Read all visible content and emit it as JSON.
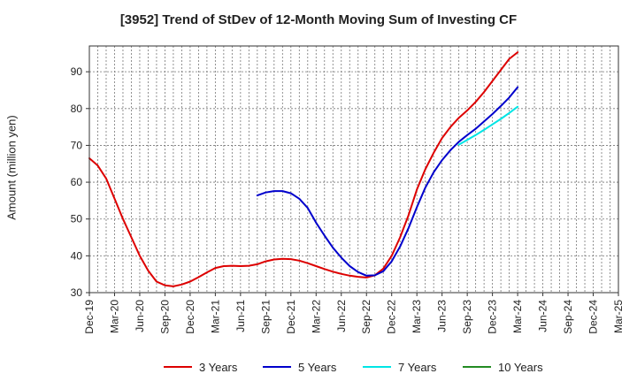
{
  "chart_data": {
    "type": "line",
    "title": "[3952]  Trend of StDev of 12-Month Moving Sum of Investing CF",
    "ylabel": "Amount (million yen)",
    "xlabel": "",
    "ylim": [
      30,
      97
    ],
    "yticks": [
      30,
      40,
      50,
      60,
      70,
      80,
      90
    ],
    "xlim": [
      "Dec-19",
      "Mar-25"
    ],
    "x_tick_labels": [
      "Dec-19",
      "Mar-20",
      "Jun-20",
      "Sep-20",
      "Dec-20",
      "Mar-21",
      "Jun-21",
      "Sep-21",
      "Dec-21",
      "Mar-22",
      "Jun-22",
      "Sep-22",
      "Dec-22",
      "Mar-23",
      "Jun-23",
      "Sep-23",
      "Dec-23",
      "Mar-24",
      "Jun-24",
      "Sep-24",
      "Dec-24",
      "Mar-25"
    ],
    "grid": true,
    "legend": "bottom",
    "series": [
      {
        "name": "3 Years",
        "color": "#dd0000",
        "x": [
          "Dec-19",
          "Jan-20",
          "Feb-20",
          "Mar-20",
          "Apr-20",
          "May-20",
          "Jun-20",
          "Jul-20",
          "Aug-20",
          "Sep-20",
          "Oct-20",
          "Nov-20",
          "Dec-20",
          "Jan-21",
          "Feb-21",
          "Mar-21",
          "Apr-21",
          "May-21",
          "Jun-21",
          "Jul-21",
          "Aug-21",
          "Sep-21",
          "Oct-21",
          "Nov-21",
          "Dec-21",
          "Jan-22",
          "Feb-22",
          "Mar-22",
          "Apr-22",
          "May-22",
          "Jun-22",
          "Jul-22",
          "Aug-22",
          "Sep-22",
          "Oct-22",
          "Nov-22",
          "Dec-22",
          "Jan-23",
          "Feb-23",
          "Mar-23",
          "Apr-23",
          "May-23",
          "Jun-23",
          "Jul-23",
          "Aug-23",
          "Sep-23",
          "Oct-23",
          "Nov-23",
          "Dec-23",
          "Jan-24",
          "Feb-24",
          "Mar-24"
        ],
        "values": [
          66.5,
          64.5,
          61,
          55.5,
          50,
          45,
          40,
          36,
          33,
          32,
          31.7,
          32.2,
          33,
          34.2,
          35.5,
          36.7,
          37.2,
          37.3,
          37.2,
          37.3,
          37.7,
          38.5,
          39,
          39.2,
          39.1,
          38.7,
          38,
          37.2,
          36.4,
          35.7,
          35.1,
          34.6,
          34.3,
          34.1,
          34.7,
          36.5,
          40,
          45,
          51,
          58,
          63.5,
          68,
          72,
          75,
          77.5,
          79.5,
          81.8,
          84.5,
          87.5,
          90.5,
          93.5,
          95.3
        ]
      },
      {
        "name": "5 Years",
        "color": "#0000cc",
        "x": [
          "Aug-21",
          "Sep-21",
          "Oct-21",
          "Nov-21",
          "Dec-21",
          "Jan-22",
          "Feb-22",
          "Mar-22",
          "Apr-22",
          "May-22",
          "Jun-22",
          "Jul-22",
          "Aug-22",
          "Sep-22",
          "Oct-22",
          "Nov-22",
          "Dec-22",
          "Jan-23",
          "Feb-23",
          "Mar-23",
          "Apr-23",
          "May-23",
          "Jun-23",
          "Jul-23",
          "Aug-23",
          "Sep-23",
          "Oct-23",
          "Nov-23",
          "Dec-23",
          "Jan-24",
          "Feb-24",
          "Mar-24"
        ],
        "values": [
          56.4,
          57.2,
          57.6,
          57.6,
          57,
          55.5,
          53,
          49,
          45.5,
          42.2,
          39.5,
          37.2,
          35.6,
          34.6,
          34.7,
          35.8,
          38.5,
          42.5,
          47.5,
          53.2,
          58.5,
          62.7,
          66,
          68.7,
          71,
          72.8,
          74.5,
          76.5,
          78.5,
          80.7,
          83,
          85.8
        ]
      },
      {
        "name": "7 Years",
        "color": "#00e5e5",
        "x": [
          "Aug-23",
          "Sep-23",
          "Oct-23",
          "Nov-23",
          "Dec-23",
          "Jan-24",
          "Feb-24",
          "Mar-24"
        ],
        "values": [
          70.2,
          71.5,
          72.8,
          74.2,
          75.7,
          77.2,
          78.8,
          80.5
        ]
      },
      {
        "name": "10 Years",
        "color": "#228b22",
        "x": [],
        "values": []
      }
    ]
  }
}
